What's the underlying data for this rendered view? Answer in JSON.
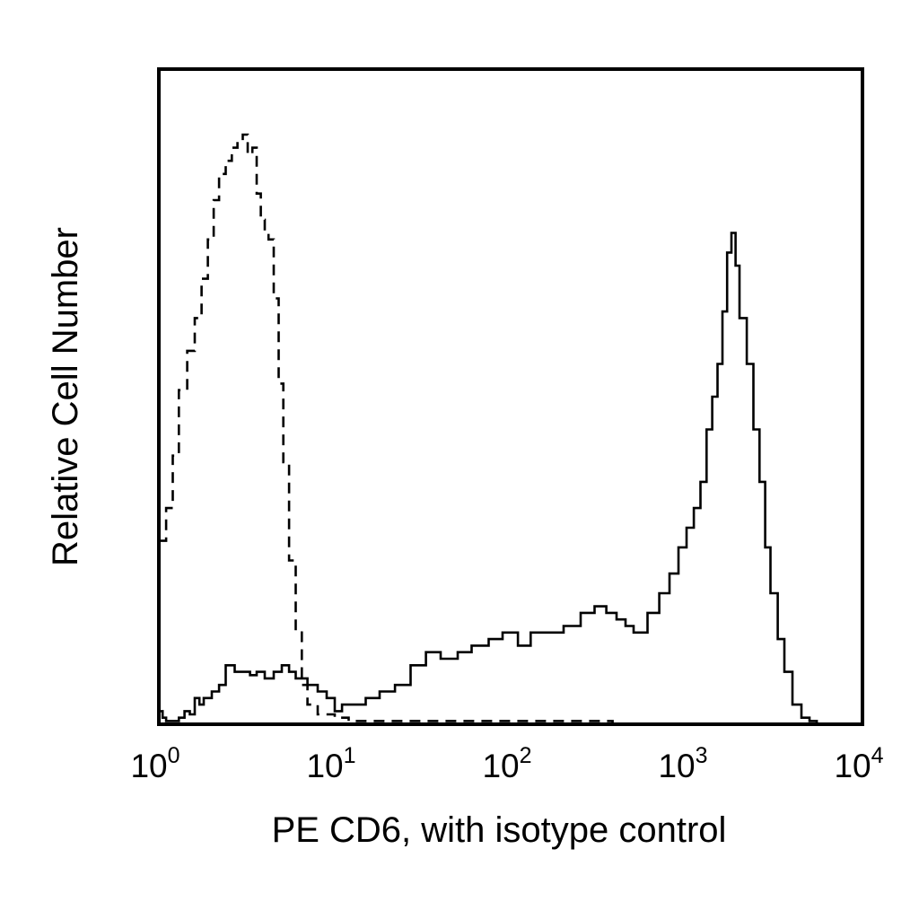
{
  "chart_data": {
    "type": "line",
    "title": "",
    "xlabel": "PE CD6, with isotype control",
    "ylabel": "Relative Cell Number",
    "xscale": "log",
    "xlim": [
      1,
      10000
    ],
    "ylim": [
      0,
      100
    ],
    "grid": false,
    "legend": "none",
    "x_ticks": [
      {
        "base": "10",
        "exp": "0"
      },
      {
        "base": "10",
        "exp": "1"
      },
      {
        "base": "10",
        "exp": "2"
      },
      {
        "base": "10",
        "exp": "3"
      },
      {
        "base": "10",
        "exp": "4"
      }
    ],
    "series": [
      {
        "style": "dashed",
        "color": "#000000",
        "x": [
          1.0,
          1.1,
          1.2,
          1.3,
          1.45,
          1.6,
          1.75,
          1.9,
          2.05,
          2.2,
          2.4,
          2.6,
          2.8,
          3.0,
          3.2,
          3.4,
          3.6,
          3.8,
          4.0,
          4.2,
          4.5,
          4.8,
          5.1,
          5.5,
          6.0,
          6.5,
          7.0,
          8.0,
          10,
          12,
          20,
          50,
          100,
          200,
          300,
          380
        ],
        "y": [
          28,
          33,
          41,
          51,
          57,
          62,
          68,
          74,
          80,
          84,
          86,
          88,
          89,
          90,
          87,
          88,
          81,
          77,
          75,
          74,
          65,
          52,
          40,
          25,
          14,
          6,
          3,
          1.5,
          1,
          0.5,
          0.5,
          0.5,
          0.5,
          0.5,
          0.5,
          0
        ]
      },
      {
        "style": "solid",
        "color": "#000000",
        "x": [
          1.0,
          1.05,
          1.1,
          1.2,
          1.3,
          1.4,
          1.5,
          1.6,
          1.7,
          1.8,
          2.0,
          2.2,
          2.4,
          2.7,
          3.0,
          3.3,
          3.6,
          4.0,
          4.5,
          5.0,
          5.5,
          6.0,
          6.5,
          7.0,
          8.0,
          9.0,
          10.0,
          11,
          13,
          15,
          18,
          22,
          27,
          33,
          40,
          50,
          60,
          75,
          90,
          110,
          130,
          160,
          200,
          250,
          300,
          350,
          400,
          450,
          500,
          600,
          700,
          800,
          900,
          1000,
          1100,
          1200,
          1300,
          1400,
          1500,
          1600,
          1700,
          1800,
          1900,
          2000,
          2200,
          2400,
          2600,
          2800,
          3000,
          3300,
          3600,
          4000,
          4500,
          5000,
          5500
        ],
        "y": [
          2,
          1,
          0.5,
          0.5,
          1,
          2,
          1.5,
          4,
          3,
          4,
          5,
          6,
          9,
          8,
          8,
          7.5,
          8,
          7,
          8,
          9,
          8,
          7,
          7,
          6,
          5,
          4,
          2,
          3,
          3,
          4,
          5,
          6,
          9,
          11,
          10,
          11,
          12,
          13,
          14,
          12,
          14,
          14,
          15,
          17,
          18,
          17,
          16,
          15,
          14,
          17,
          20,
          23,
          27,
          30,
          33,
          37,
          45,
          50,
          55,
          63,
          72,
          75,
          70,
          62,
          55,
          45,
          37,
          27,
          20,
          13,
          8,
          3,
          1,
          0.5,
          0
        ]
      }
    ]
  }
}
